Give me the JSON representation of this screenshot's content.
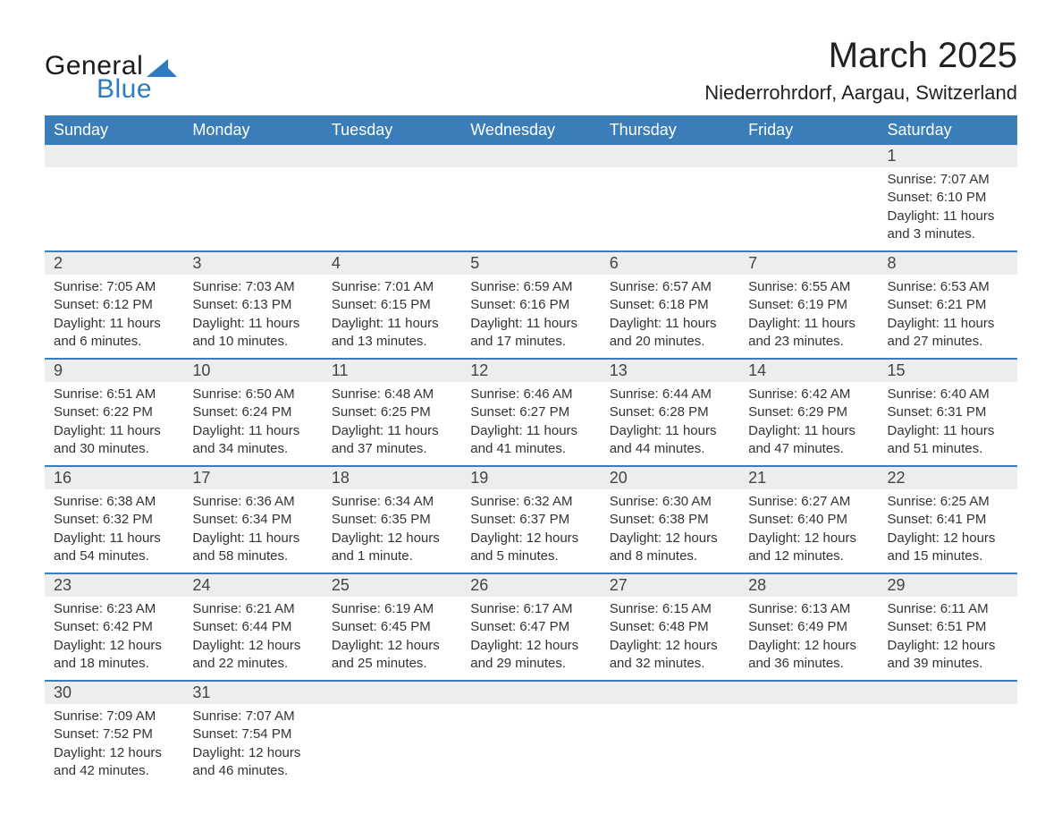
{
  "logo": {
    "text1": "General",
    "text2": "Blue",
    "triangle_color": "#2e7cbf"
  },
  "title": "March 2025",
  "location": "Niederrohrdorf, Aargau, Switzerland",
  "colors": {
    "header_bg": "#3a7db8",
    "header_text": "#ffffff",
    "strip_bg": "#ededed",
    "row_border": "#3a7db8",
    "body_text": "#333333"
  },
  "day_headers": [
    "Sunday",
    "Monday",
    "Tuesday",
    "Wednesday",
    "Thursday",
    "Friday",
    "Saturday"
  ],
  "weeks": [
    [
      null,
      null,
      null,
      null,
      null,
      null,
      {
        "n": "1",
        "sr": "7:07 AM",
        "ss": "6:10 PM",
        "dl": "11 hours and 3 minutes."
      }
    ],
    [
      {
        "n": "2",
        "sr": "7:05 AM",
        "ss": "6:12 PM",
        "dl": "11 hours and 6 minutes."
      },
      {
        "n": "3",
        "sr": "7:03 AM",
        "ss": "6:13 PM",
        "dl": "11 hours and 10 minutes."
      },
      {
        "n": "4",
        "sr": "7:01 AM",
        "ss": "6:15 PM",
        "dl": "11 hours and 13 minutes."
      },
      {
        "n": "5",
        "sr": "6:59 AM",
        "ss": "6:16 PM",
        "dl": "11 hours and 17 minutes."
      },
      {
        "n": "6",
        "sr": "6:57 AM",
        "ss": "6:18 PM",
        "dl": "11 hours and 20 minutes."
      },
      {
        "n": "7",
        "sr": "6:55 AM",
        "ss": "6:19 PM",
        "dl": "11 hours and 23 minutes."
      },
      {
        "n": "8",
        "sr": "6:53 AM",
        "ss": "6:21 PM",
        "dl": "11 hours and 27 minutes."
      }
    ],
    [
      {
        "n": "9",
        "sr": "6:51 AM",
        "ss": "6:22 PM",
        "dl": "11 hours and 30 minutes."
      },
      {
        "n": "10",
        "sr": "6:50 AM",
        "ss": "6:24 PM",
        "dl": "11 hours and 34 minutes."
      },
      {
        "n": "11",
        "sr": "6:48 AM",
        "ss": "6:25 PM",
        "dl": "11 hours and 37 minutes."
      },
      {
        "n": "12",
        "sr": "6:46 AM",
        "ss": "6:27 PM",
        "dl": "11 hours and 41 minutes."
      },
      {
        "n": "13",
        "sr": "6:44 AM",
        "ss": "6:28 PM",
        "dl": "11 hours and 44 minutes."
      },
      {
        "n": "14",
        "sr": "6:42 AM",
        "ss": "6:29 PM",
        "dl": "11 hours and 47 minutes."
      },
      {
        "n": "15",
        "sr": "6:40 AM",
        "ss": "6:31 PM",
        "dl": "11 hours and 51 minutes."
      }
    ],
    [
      {
        "n": "16",
        "sr": "6:38 AM",
        "ss": "6:32 PM",
        "dl": "11 hours and 54 minutes."
      },
      {
        "n": "17",
        "sr": "6:36 AM",
        "ss": "6:34 PM",
        "dl": "11 hours and 58 minutes."
      },
      {
        "n": "18",
        "sr": "6:34 AM",
        "ss": "6:35 PM",
        "dl": "12 hours and 1 minute."
      },
      {
        "n": "19",
        "sr": "6:32 AM",
        "ss": "6:37 PM",
        "dl": "12 hours and 5 minutes."
      },
      {
        "n": "20",
        "sr": "6:30 AM",
        "ss": "6:38 PM",
        "dl": "12 hours and 8 minutes."
      },
      {
        "n": "21",
        "sr": "6:27 AM",
        "ss": "6:40 PM",
        "dl": "12 hours and 12 minutes."
      },
      {
        "n": "22",
        "sr": "6:25 AM",
        "ss": "6:41 PM",
        "dl": "12 hours and 15 minutes."
      }
    ],
    [
      {
        "n": "23",
        "sr": "6:23 AM",
        "ss": "6:42 PM",
        "dl": "12 hours and 18 minutes."
      },
      {
        "n": "24",
        "sr": "6:21 AM",
        "ss": "6:44 PM",
        "dl": "12 hours and 22 minutes."
      },
      {
        "n": "25",
        "sr": "6:19 AM",
        "ss": "6:45 PM",
        "dl": "12 hours and 25 minutes."
      },
      {
        "n": "26",
        "sr": "6:17 AM",
        "ss": "6:47 PM",
        "dl": "12 hours and 29 minutes."
      },
      {
        "n": "27",
        "sr": "6:15 AM",
        "ss": "6:48 PM",
        "dl": "12 hours and 32 minutes."
      },
      {
        "n": "28",
        "sr": "6:13 AM",
        "ss": "6:49 PM",
        "dl": "12 hours and 36 minutes."
      },
      {
        "n": "29",
        "sr": "6:11 AM",
        "ss": "6:51 PM",
        "dl": "12 hours and 39 minutes."
      }
    ],
    [
      {
        "n": "30",
        "sr": "7:09 AM",
        "ss": "7:52 PM",
        "dl": "12 hours and 42 minutes."
      },
      {
        "n": "31",
        "sr": "7:07 AM",
        "ss": "7:54 PM",
        "dl": "12 hours and 46 minutes."
      },
      null,
      null,
      null,
      null,
      null
    ]
  ],
  "labels": {
    "sunrise": "Sunrise: ",
    "sunset": "Sunset: ",
    "daylight": "Daylight: "
  }
}
